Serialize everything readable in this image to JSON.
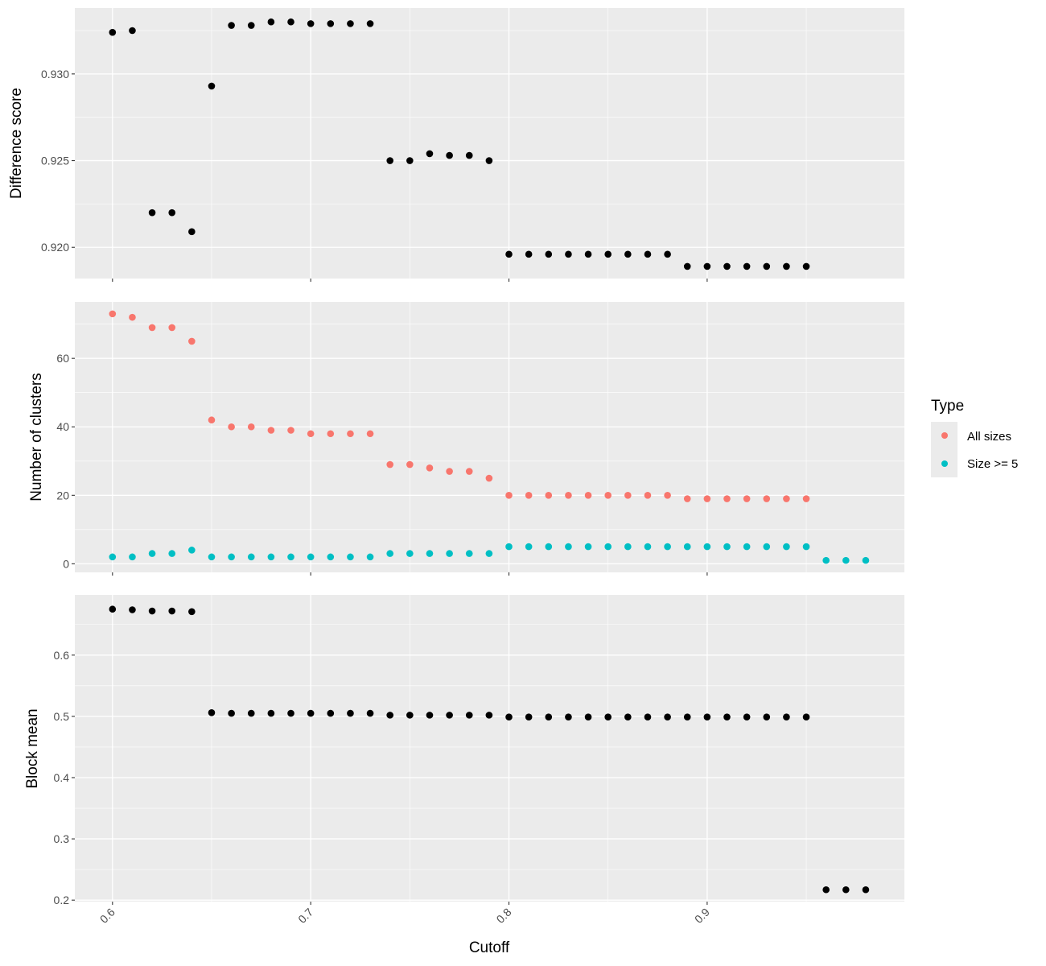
{
  "chart_data": [
    {
      "type": "scatter",
      "panel": "top",
      "title": "",
      "xlabel": "",
      "ylabel": "Difference score",
      "xlim": [
        0.581,
        0.9995
      ],
      "ylim": [
        0.9182,
        0.9338
      ],
      "x_ticks": [
        0.6,
        0.7,
        0.8,
        0.9
      ],
      "y_ticks": [
        0.92,
        0.925,
        0.93
      ],
      "y_tick_labels": [
        "0.920",
        "0.925",
        "0.930"
      ],
      "grid": true,
      "point_color": "#000000",
      "series": [
        {
          "x": [
            0.6,
            0.61,
            0.62,
            0.63,
            0.64,
            0.65,
            0.66,
            0.67,
            0.68,
            0.69,
            0.7,
            0.71,
            0.72,
            0.73,
            0.74,
            0.75,
            0.76,
            0.77,
            0.78,
            0.79,
            0.8,
            0.81,
            0.82,
            0.83,
            0.84,
            0.85,
            0.86,
            0.87,
            0.88,
            0.89,
            0.9,
            0.91,
            0.92,
            0.93,
            0.94,
            0.95
          ],
          "y": [
            0.9324,
            0.9325,
            0.922,
            0.922,
            0.9209,
            0.9293,
            0.9328,
            0.9328,
            0.933,
            0.933,
            0.9329,
            0.9329,
            0.9329,
            0.9329,
            0.925,
            0.925,
            0.9254,
            0.9253,
            0.9253,
            0.925,
            0.9196,
            0.9196,
            0.9196,
            0.9196,
            0.9196,
            0.9196,
            0.9196,
            0.9196,
            0.9196,
            0.9189,
            0.9189,
            0.9189,
            0.9189,
            0.9189,
            0.9189,
            0.9189
          ]
        }
      ]
    },
    {
      "type": "scatter",
      "panel": "middle",
      "title": "",
      "xlabel": "",
      "ylabel": "Number of clusters",
      "xlim": [
        0.581,
        0.9995
      ],
      "ylim": [
        -2.5,
        76.5
      ],
      "x_ticks": [
        0.6,
        0.7,
        0.8,
        0.9
      ],
      "y_ticks": [
        0,
        20,
        40,
        60
      ],
      "y_tick_labels": [
        "0",
        "20",
        "40",
        "60"
      ],
      "grid": true,
      "legend_placement": "right",
      "legend_title": "Type",
      "series": [
        {
          "name": "All sizes",
          "color": "#F8766D",
          "x": [
            0.6,
            0.61,
            0.62,
            0.63,
            0.64,
            0.65,
            0.66,
            0.67,
            0.68,
            0.69,
            0.7,
            0.71,
            0.72,
            0.73,
            0.74,
            0.75,
            0.76,
            0.77,
            0.78,
            0.79,
            0.8,
            0.81,
            0.82,
            0.83,
            0.84,
            0.85,
            0.86,
            0.87,
            0.88,
            0.89,
            0.9,
            0.91,
            0.92,
            0.93,
            0.94,
            0.95
          ],
          "y": [
            73,
            72,
            69,
            69,
            65,
            42,
            40,
            40,
            39,
            39,
            38,
            38,
            38,
            38,
            29,
            29,
            28,
            27,
            27,
            25,
            20,
            20,
            20,
            20,
            20,
            20,
            20,
            20,
            20,
            19,
            19,
            19,
            19,
            19,
            19,
            19
          ]
        },
        {
          "name": "Size >= 5",
          "color": "#00BFC4",
          "x": [
            0.6,
            0.61,
            0.62,
            0.63,
            0.64,
            0.65,
            0.66,
            0.67,
            0.68,
            0.69,
            0.7,
            0.71,
            0.72,
            0.73,
            0.74,
            0.75,
            0.76,
            0.77,
            0.78,
            0.79,
            0.8,
            0.81,
            0.82,
            0.83,
            0.84,
            0.85,
            0.86,
            0.87,
            0.88,
            0.89,
            0.9,
            0.91,
            0.92,
            0.93,
            0.94,
            0.95,
            0.96,
            0.97,
            0.98
          ],
          "y": [
            2,
            2,
            3,
            3,
            4,
            2,
            2,
            2,
            2,
            2,
            2,
            2,
            2,
            2,
            3,
            3,
            3,
            3,
            3,
            3,
            5,
            5,
            5,
            5,
            5,
            5,
            5,
            5,
            5,
            5,
            5,
            5,
            5,
            5,
            5,
            5,
            1,
            1,
            1
          ]
        }
      ]
    },
    {
      "type": "scatter",
      "panel": "bottom",
      "title": "",
      "xlabel": "Cutoff",
      "ylabel": "Block mean",
      "xlim": [
        0.581,
        0.9995
      ],
      "ylim": [
        0.1976,
        0.6983
      ],
      "x_ticks": [
        0.6,
        0.7,
        0.8,
        0.9
      ],
      "x_tick_labels": [
        "0.6",
        "0.7",
        "0.8",
        "0.9"
      ],
      "y_ticks": [
        0.2,
        0.3,
        0.4,
        0.5,
        0.6
      ],
      "y_tick_labels": [
        "0.2",
        "0.3",
        "0.4",
        "0.5",
        "0.6"
      ],
      "grid": true,
      "point_color": "#000000",
      "series": [
        {
          "x": [
            0.6,
            0.61,
            0.62,
            0.63,
            0.64,
            0.65,
            0.66,
            0.67,
            0.68,
            0.69,
            0.7,
            0.71,
            0.72,
            0.73,
            0.74,
            0.75,
            0.76,
            0.77,
            0.78,
            0.79,
            0.8,
            0.81,
            0.82,
            0.83,
            0.84,
            0.85,
            0.86,
            0.87,
            0.88,
            0.89,
            0.9,
            0.91,
            0.92,
            0.93,
            0.94,
            0.95,
            0.96,
            0.97,
            0.98
          ],
          "y": [
            0.675,
            0.674,
            0.672,
            0.672,
            0.671,
            0.506,
            0.505,
            0.505,
            0.505,
            0.505,
            0.505,
            0.505,
            0.505,
            0.505,
            0.502,
            0.502,
            0.502,
            0.502,
            0.502,
            0.502,
            0.499,
            0.499,
            0.499,
            0.499,
            0.499,
            0.499,
            0.499,
            0.499,
            0.499,
            0.499,
            0.499,
            0.499,
            0.499,
            0.499,
            0.499,
            0.499,
            0.217,
            0.217,
            0.217
          ]
        }
      ]
    }
  ],
  "legend": {
    "title": "Type",
    "items": [
      {
        "label": "All sizes",
        "color": "#F8766D"
      },
      {
        "label": "Size >= 5",
        "color": "#00BFC4"
      }
    ]
  }
}
